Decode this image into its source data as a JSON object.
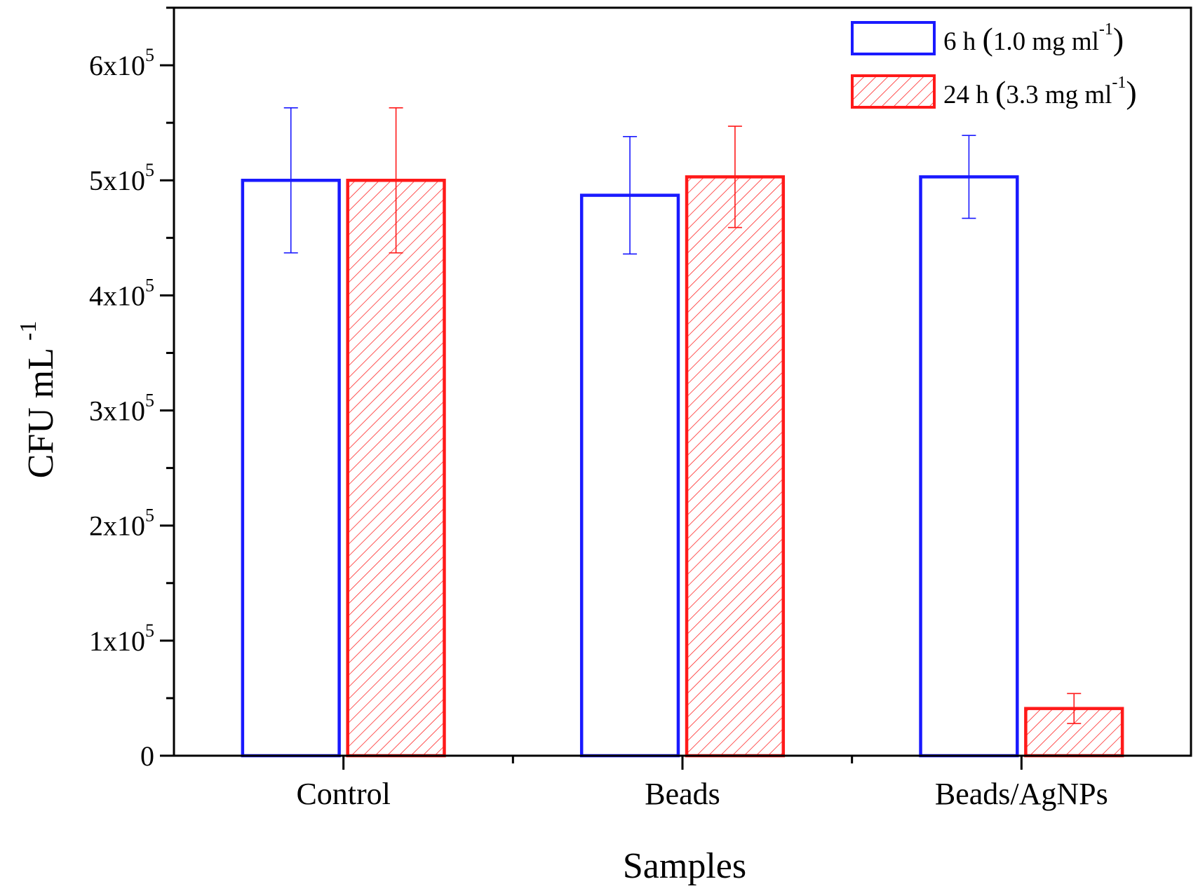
{
  "chart_data": {
    "type": "bar",
    "title": "",
    "xlabel": "Samples",
    "ylabel": {
      "base": "CFU mL",
      "sup": "-1"
    },
    "categories": [
      "Control",
      "Beads",
      "Beads/AgNPs"
    ],
    "ylim": [
      0,
      650000
    ],
    "yticks": [
      {
        "value": 0,
        "label": "0",
        "mant": "",
        "exp": ""
      },
      {
        "value": 100000,
        "label": "1x10^5",
        "mant": "1x10",
        "exp": "5"
      },
      {
        "value": 200000,
        "label": "2x10^5",
        "mant": "2x10",
        "exp": "5"
      },
      {
        "value": 300000,
        "label": "3x10^5",
        "mant": "3x10",
        "exp": "5"
      },
      {
        "value": 400000,
        "label": "4x10^5",
        "mant": "4x10",
        "exp": "5"
      },
      {
        "value": 500000,
        "label": "5x10^5",
        "mant": "5x10",
        "exp": "5"
      },
      {
        "value": 600000,
        "label": "6x10^5",
        "mant": "6x10",
        "exp": "5"
      }
    ],
    "series": [
      {
        "name": "6 h (1.0 mg ml-1)",
        "legend_parts": {
          "main": "6 h ",
          "dose": "1.0 mg ml",
          "sup": "-1"
        },
        "color": "#1a1aff",
        "pattern": "none",
        "values": [
          500000,
          487000,
          503000
        ],
        "errors": [
          63000,
          51000,
          36000
        ]
      },
      {
        "name": "24 h (3.3 mg ml-1)",
        "legend_parts": {
          "main": "24 h ",
          "dose": "3.3 mg ml",
          "sup": "-1"
        },
        "color": "#ff1a1a",
        "pattern": "hatch",
        "values": [
          500000,
          503000,
          41000
        ],
        "errors": [
          63000,
          44000,
          13000
        ]
      }
    ],
    "grid": false,
    "legend_position": "top-right"
  }
}
